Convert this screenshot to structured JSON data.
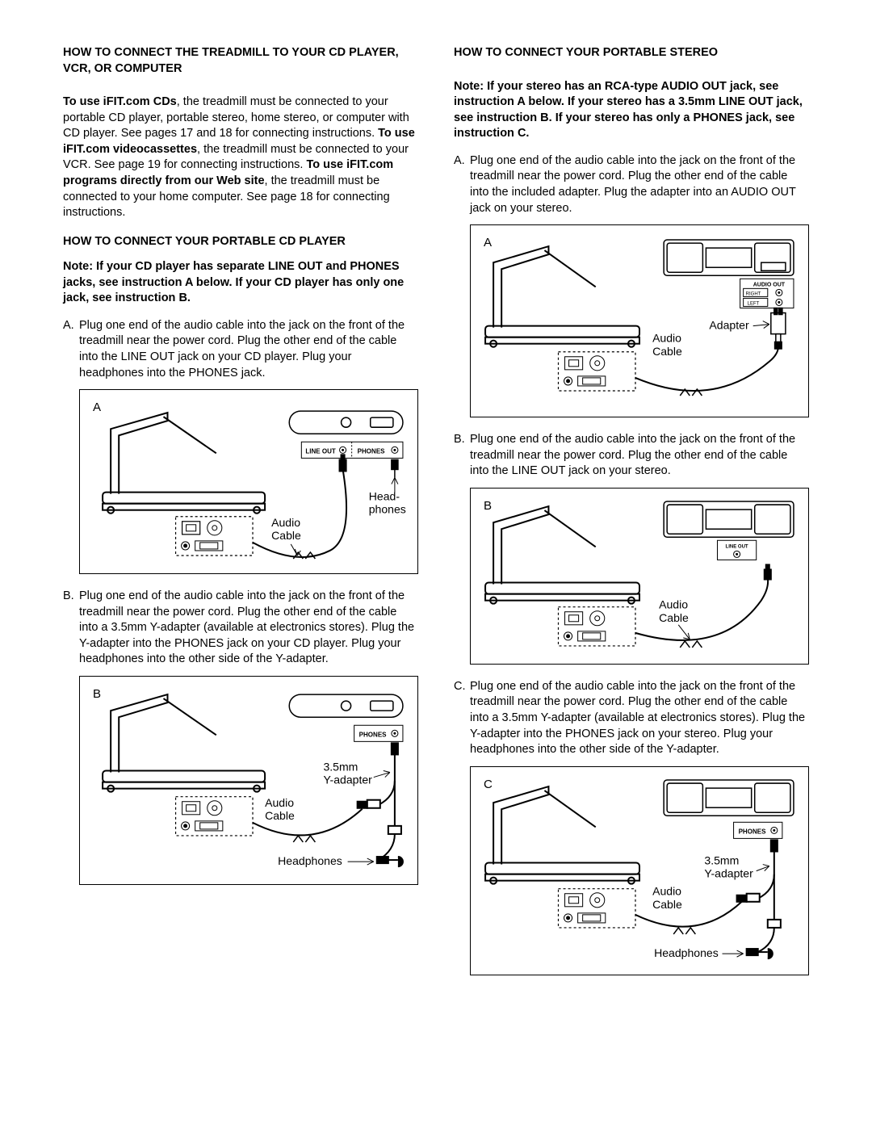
{
  "left": {
    "title": "HOW TO CONNECT THE TREADMILL TO YOUR CD PLAYER, VCR, OR COMPUTER",
    "intro_html": "To use iFIT.com CDs|, the treadmill must be connected to your portable CD player, portable stereo, home stereo, or computer with CD player. See pages 17 and 18 for connecting instructions. |To use iFIT.com videocassettes|, the treadmill must be connected to your VCR. See page 19 for connecting instructions. |To use iFIT.com programs directly from our Web site|, the treadmill must be connected to your home computer. See page 18 for connecting instructions.",
    "sub1": "HOW TO CONNECT YOUR PORTABLE CD PLAYER",
    "note1": "Note: If your CD player has separate LINE OUT and PHONES jacks, see instruction A below. If your CD player has only one jack, see instruction B.",
    "stepA": "Plug one end of the audio cable into the jack on the front of the treadmill near the power cord. Plug the other end of the cable into the LINE OUT jack on your CD player. Plug your headphones into the PHONES jack.",
    "stepB": "Plug one end of the audio cable into the jack on the front of the treadmill near the power cord. Plug the other end of the cable into a 3.5mm Y-adapter (available at electronics stores). Plug the Y-adapter into the PHONES jack on your CD player. Plug your headphones into the other side of the Y-adapter.",
    "figA": {
      "label": "A",
      "lineout": "LINE OUT",
      "phones": "PHONES",
      "audio_cable": "Audio\nCable",
      "headphones": "Head-\nphones"
    },
    "figB": {
      "label": "B",
      "phones": "PHONES",
      "audio_cable": "Audio\nCable",
      "yadapter": "3.5mm\nY-adapter",
      "headphones": "Headphones"
    }
  },
  "right": {
    "title": "HOW TO CONNECT YOUR PORTABLE STEREO",
    "note1": "Note: If your stereo has an RCA-type AUDIO OUT jack, see instruction A below. If your stereo has a 3.5mm LINE OUT jack, see instruction B. If your stereo has only a PHONES jack, see instruction C.",
    "stepA": "Plug one end of the audio cable into the jack on the front of the treadmill near the power cord. Plug the other end of the cable into the included adapter. Plug the adapter into an AUDIO OUT jack on your stereo.",
    "stepB": "Plug one end of the audio cable into the jack on the front of the treadmill near the power cord. Plug the other end of the cable into the LINE OUT jack on your stereo.",
    "stepC": "Plug one end of the audio cable into the jack on the front of the treadmill near the power cord. Plug the other end of the cable into a 3.5mm Y-adapter (available at electronics stores). Plug the Y-adapter into the PHONES jack on your stereo. Plug your headphones into the other side of the Y-adapter.",
    "figA": {
      "label": "A",
      "audio_out": "AUDIO OUT",
      "right": "RIGHT",
      "left": "LEFT",
      "audio_cable": "Audio\nCable",
      "adapter": "Adapter"
    },
    "figB": {
      "label": "B",
      "lineout": "LINE OUT",
      "audio_cable": "Audio\nCable"
    },
    "figC": {
      "label": "C",
      "phones": "PHONES",
      "audio_cable": "Audio\nCable",
      "yadapter": "3.5mm\nY-adapter",
      "headphones": "Headphones"
    }
  }
}
